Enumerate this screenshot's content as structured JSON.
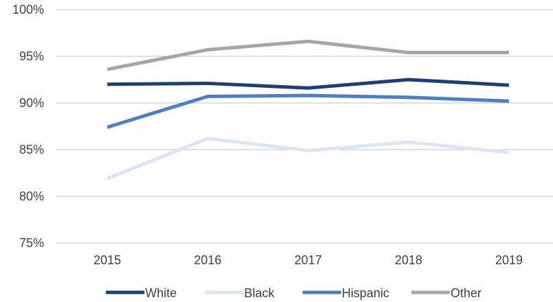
{
  "chart_data": {
    "type": "line",
    "title": "",
    "xlabel": "",
    "ylabel": "",
    "x": [
      "2015",
      "2016",
      "2017",
      "2018",
      "2019"
    ],
    "ylim": [
      75,
      100
    ],
    "yticks": [
      75,
      80,
      85,
      90,
      95,
      100
    ],
    "ytick_labels": [
      "75%",
      "80%",
      "85%",
      "90%",
      "95%",
      "100%"
    ],
    "grid": true,
    "legend_position": "bottom",
    "series": [
      {
        "name": "White",
        "color": "#1f3f70",
        "values": [
          92.0,
          92.1,
          91.6,
          92.5,
          91.9
        ]
      },
      {
        "name": "Black",
        "color": "#dbe5f3",
        "values": [
          81.9,
          86.2,
          84.9,
          85.8,
          84.7
        ]
      },
      {
        "name": "Hispanic",
        "color": "#4f7fbf",
        "values": [
          87.4,
          90.7,
          90.8,
          90.6,
          90.2
        ]
      },
      {
        "name": "Other",
        "color": "#a6a6a6",
        "values": [
          93.6,
          95.7,
          96.6,
          95.4,
          95.4
        ]
      }
    ]
  }
}
